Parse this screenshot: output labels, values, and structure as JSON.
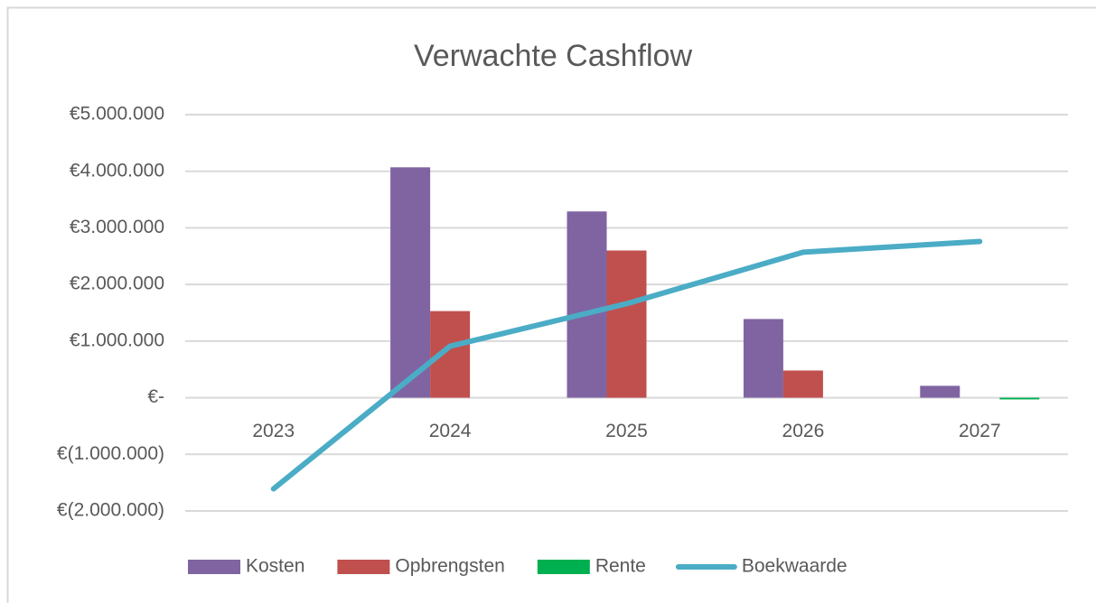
{
  "chart_data": {
    "type": "bar",
    "title": "Verwachte Cashflow",
    "categories": [
      "2023",
      "2024",
      "2025",
      "2026",
      "2027"
    ],
    "series": [
      {
        "name": "Kosten",
        "color": "#8064a2",
        "values": [
          0,
          4070000,
          3290000,
          1390000,
          210000
        ]
      },
      {
        "name": "Opbrengsten",
        "color": "#c0504d",
        "values": [
          0,
          1530000,
          2600000,
          480000,
          0
        ]
      },
      {
        "name": "Rente",
        "color": "#00b050",
        "values": [
          0,
          0,
          0,
          0,
          -30000
        ]
      },
      {
        "name": "Boekwaarde",
        "color": "#4bacc6",
        "type": "line",
        "values": [
          -1610000,
          910000,
          1660000,
          2570000,
          2760000
        ]
      }
    ],
    "ylim": [
      -2000000,
      5000000
    ],
    "yticks": [
      {
        "value": -2000000,
        "label": "€(2.000.000)"
      },
      {
        "value": -1000000,
        "label": "€(1.000.000)"
      },
      {
        "value": 0,
        "label": "€-"
      },
      {
        "value": 1000000,
        "label": "€1.000.000"
      },
      {
        "value": 2000000,
        "label": "€2.000.000"
      },
      {
        "value": 3000000,
        "label": "€3.000.000"
      },
      {
        "value": 4000000,
        "label": "€4.000.000"
      },
      {
        "value": 5000000,
        "label": "€5.000.000"
      }
    ],
    "grid": true,
    "legend": "bottom"
  }
}
